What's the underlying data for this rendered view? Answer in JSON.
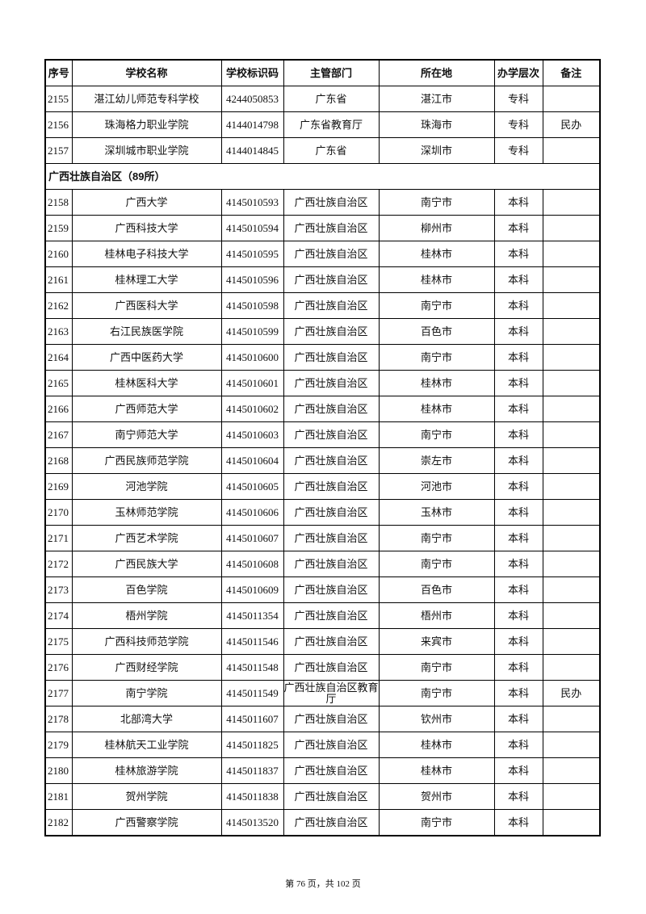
{
  "table": {
    "headers": [
      "序号",
      "学校名称",
      "学校标识码",
      "主管部门",
      "所在地",
      "办学层次",
      "备注"
    ],
    "rows_before": [
      [
        "2155",
        "湛江幼儿师范专科学校",
        "4244050853",
        "广东省",
        "湛江市",
        "专科",
        ""
      ],
      [
        "2156",
        "珠海格力职业学院",
        "4144014798",
        "广东省教育厅",
        "珠海市",
        "专科",
        "民办"
      ],
      [
        "2157",
        "深圳城市职业学院",
        "4144014845",
        "广东省",
        "深圳市",
        "专科",
        ""
      ]
    ],
    "section_label": "广西壮族自治区（89所）",
    "rows_after": [
      [
        "2158",
        "广西大学",
        "4145010593",
        "广西壮族自治区",
        "南宁市",
        "本科",
        ""
      ],
      [
        "2159",
        "广西科技大学",
        "4145010594",
        "广西壮族自治区",
        "柳州市",
        "本科",
        ""
      ],
      [
        "2160",
        "桂林电子科技大学",
        "4145010595",
        "广西壮族自治区",
        "桂林市",
        "本科",
        ""
      ],
      [
        "2161",
        "桂林理工大学",
        "4145010596",
        "广西壮族自治区",
        "桂林市",
        "本科",
        ""
      ],
      [
        "2162",
        "广西医科大学",
        "4145010598",
        "广西壮族自治区",
        "南宁市",
        "本科",
        ""
      ],
      [
        "2163",
        "右江民族医学院",
        "4145010599",
        "广西壮族自治区",
        "百色市",
        "本科",
        ""
      ],
      [
        "2164",
        "广西中医药大学",
        "4145010600",
        "广西壮族自治区",
        "南宁市",
        "本科",
        ""
      ],
      [
        "2165",
        "桂林医科大学",
        "4145010601",
        "广西壮族自治区",
        "桂林市",
        "本科",
        ""
      ],
      [
        "2166",
        "广西师范大学",
        "4145010602",
        "广西壮族自治区",
        "桂林市",
        "本科",
        ""
      ],
      [
        "2167",
        "南宁师范大学",
        "4145010603",
        "广西壮族自治区",
        "南宁市",
        "本科",
        ""
      ],
      [
        "2168",
        "广西民族师范学院",
        "4145010604",
        "广西壮族自治区",
        "崇左市",
        "本科",
        ""
      ],
      [
        "2169",
        "河池学院",
        "4145010605",
        "广西壮族自治区",
        "河池市",
        "本科",
        ""
      ],
      [
        "2170",
        "玉林师范学院",
        "4145010606",
        "广西壮族自治区",
        "玉林市",
        "本科",
        ""
      ],
      [
        "2171",
        "广西艺术学院",
        "4145010607",
        "广西壮族自治区",
        "南宁市",
        "本科",
        ""
      ],
      [
        "2172",
        "广西民族大学",
        "4145010608",
        "广西壮族自治区",
        "南宁市",
        "本科",
        ""
      ],
      [
        "2173",
        "百色学院",
        "4145010609",
        "广西壮族自治区",
        "百色市",
        "本科",
        ""
      ],
      [
        "2174",
        "梧州学院",
        "4145011354",
        "广西壮族自治区",
        "梧州市",
        "本科",
        ""
      ],
      [
        "2175",
        "广西科技师范学院",
        "4145011546",
        "广西壮族自治区",
        "来宾市",
        "本科",
        ""
      ],
      [
        "2176",
        "广西财经学院",
        "4145011548",
        "广西壮族自治区",
        "南宁市",
        "本科",
        ""
      ],
      [
        "2177",
        "南宁学院",
        "4145011549",
        "广西壮族自治区教育厅",
        "南宁市",
        "本科",
        "民办"
      ],
      [
        "2178",
        "北部湾大学",
        "4145011607",
        "广西壮族自治区",
        "钦州市",
        "本科",
        ""
      ],
      [
        "2179",
        "桂林航天工业学院",
        "4145011825",
        "广西壮族自治区",
        "桂林市",
        "本科",
        ""
      ],
      [
        "2180",
        "桂林旅游学院",
        "4145011837",
        "广西壮族自治区",
        "桂林市",
        "本科",
        ""
      ],
      [
        "2181",
        "贺州学院",
        "4145011838",
        "广西壮族自治区",
        "贺州市",
        "本科",
        ""
      ],
      [
        "2182",
        "广西警察学院",
        "4145013520",
        "广西壮族自治区",
        "南宁市",
        "本科",
        ""
      ]
    ]
  },
  "footer": "第 76 页，共 102 页"
}
